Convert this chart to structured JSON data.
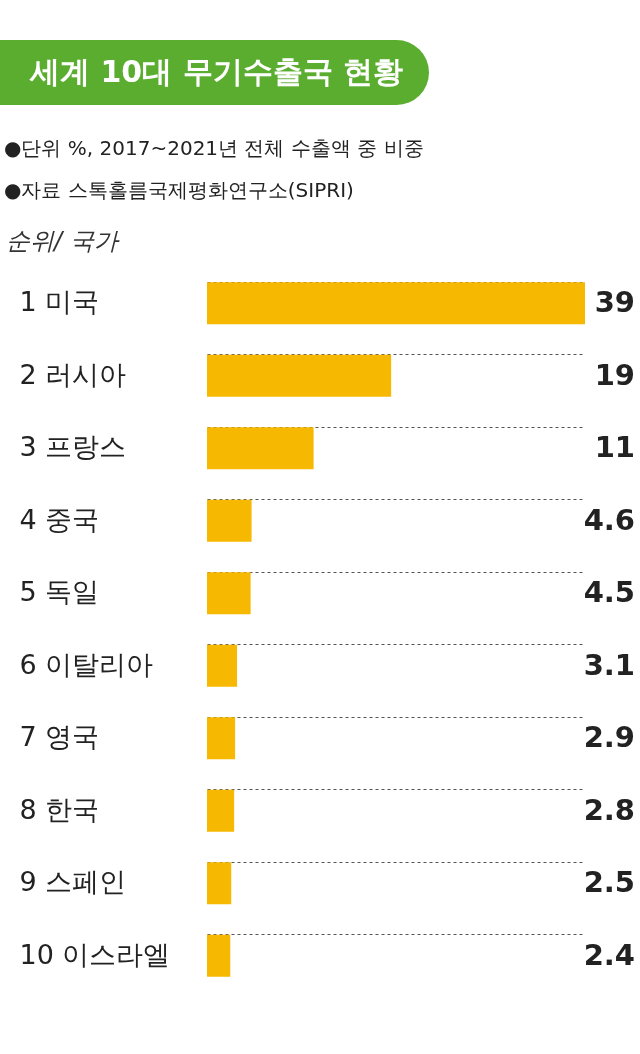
{
  "chart_data": {
    "type": "bar",
    "orientation": "horizontal",
    "title": "세계 10대 무기수출국 현황",
    "annotations": [
      "●단위 %, 2017~2021년 전체 수출액 중 비중",
      "●자료 스톡홀름국제평화연구소(SIPRI)"
    ],
    "ylabel": "순위/ 국가",
    "categories": [
      "1 미국",
      "2 러시아",
      "3 프랑스",
      "4 중국",
      "5 독일",
      "6 이탈리아",
      "7 영국",
      "8 한국",
      "9 스페인",
      "10 이스라엘"
    ],
    "values": [
      39,
      19,
      11,
      4.6,
      4.5,
      3.1,
      2.9,
      2.8,
      2.5,
      2.4
    ],
    "color": "#f6b800",
    "data_labels": true,
    "grid": "y"
  }
}
